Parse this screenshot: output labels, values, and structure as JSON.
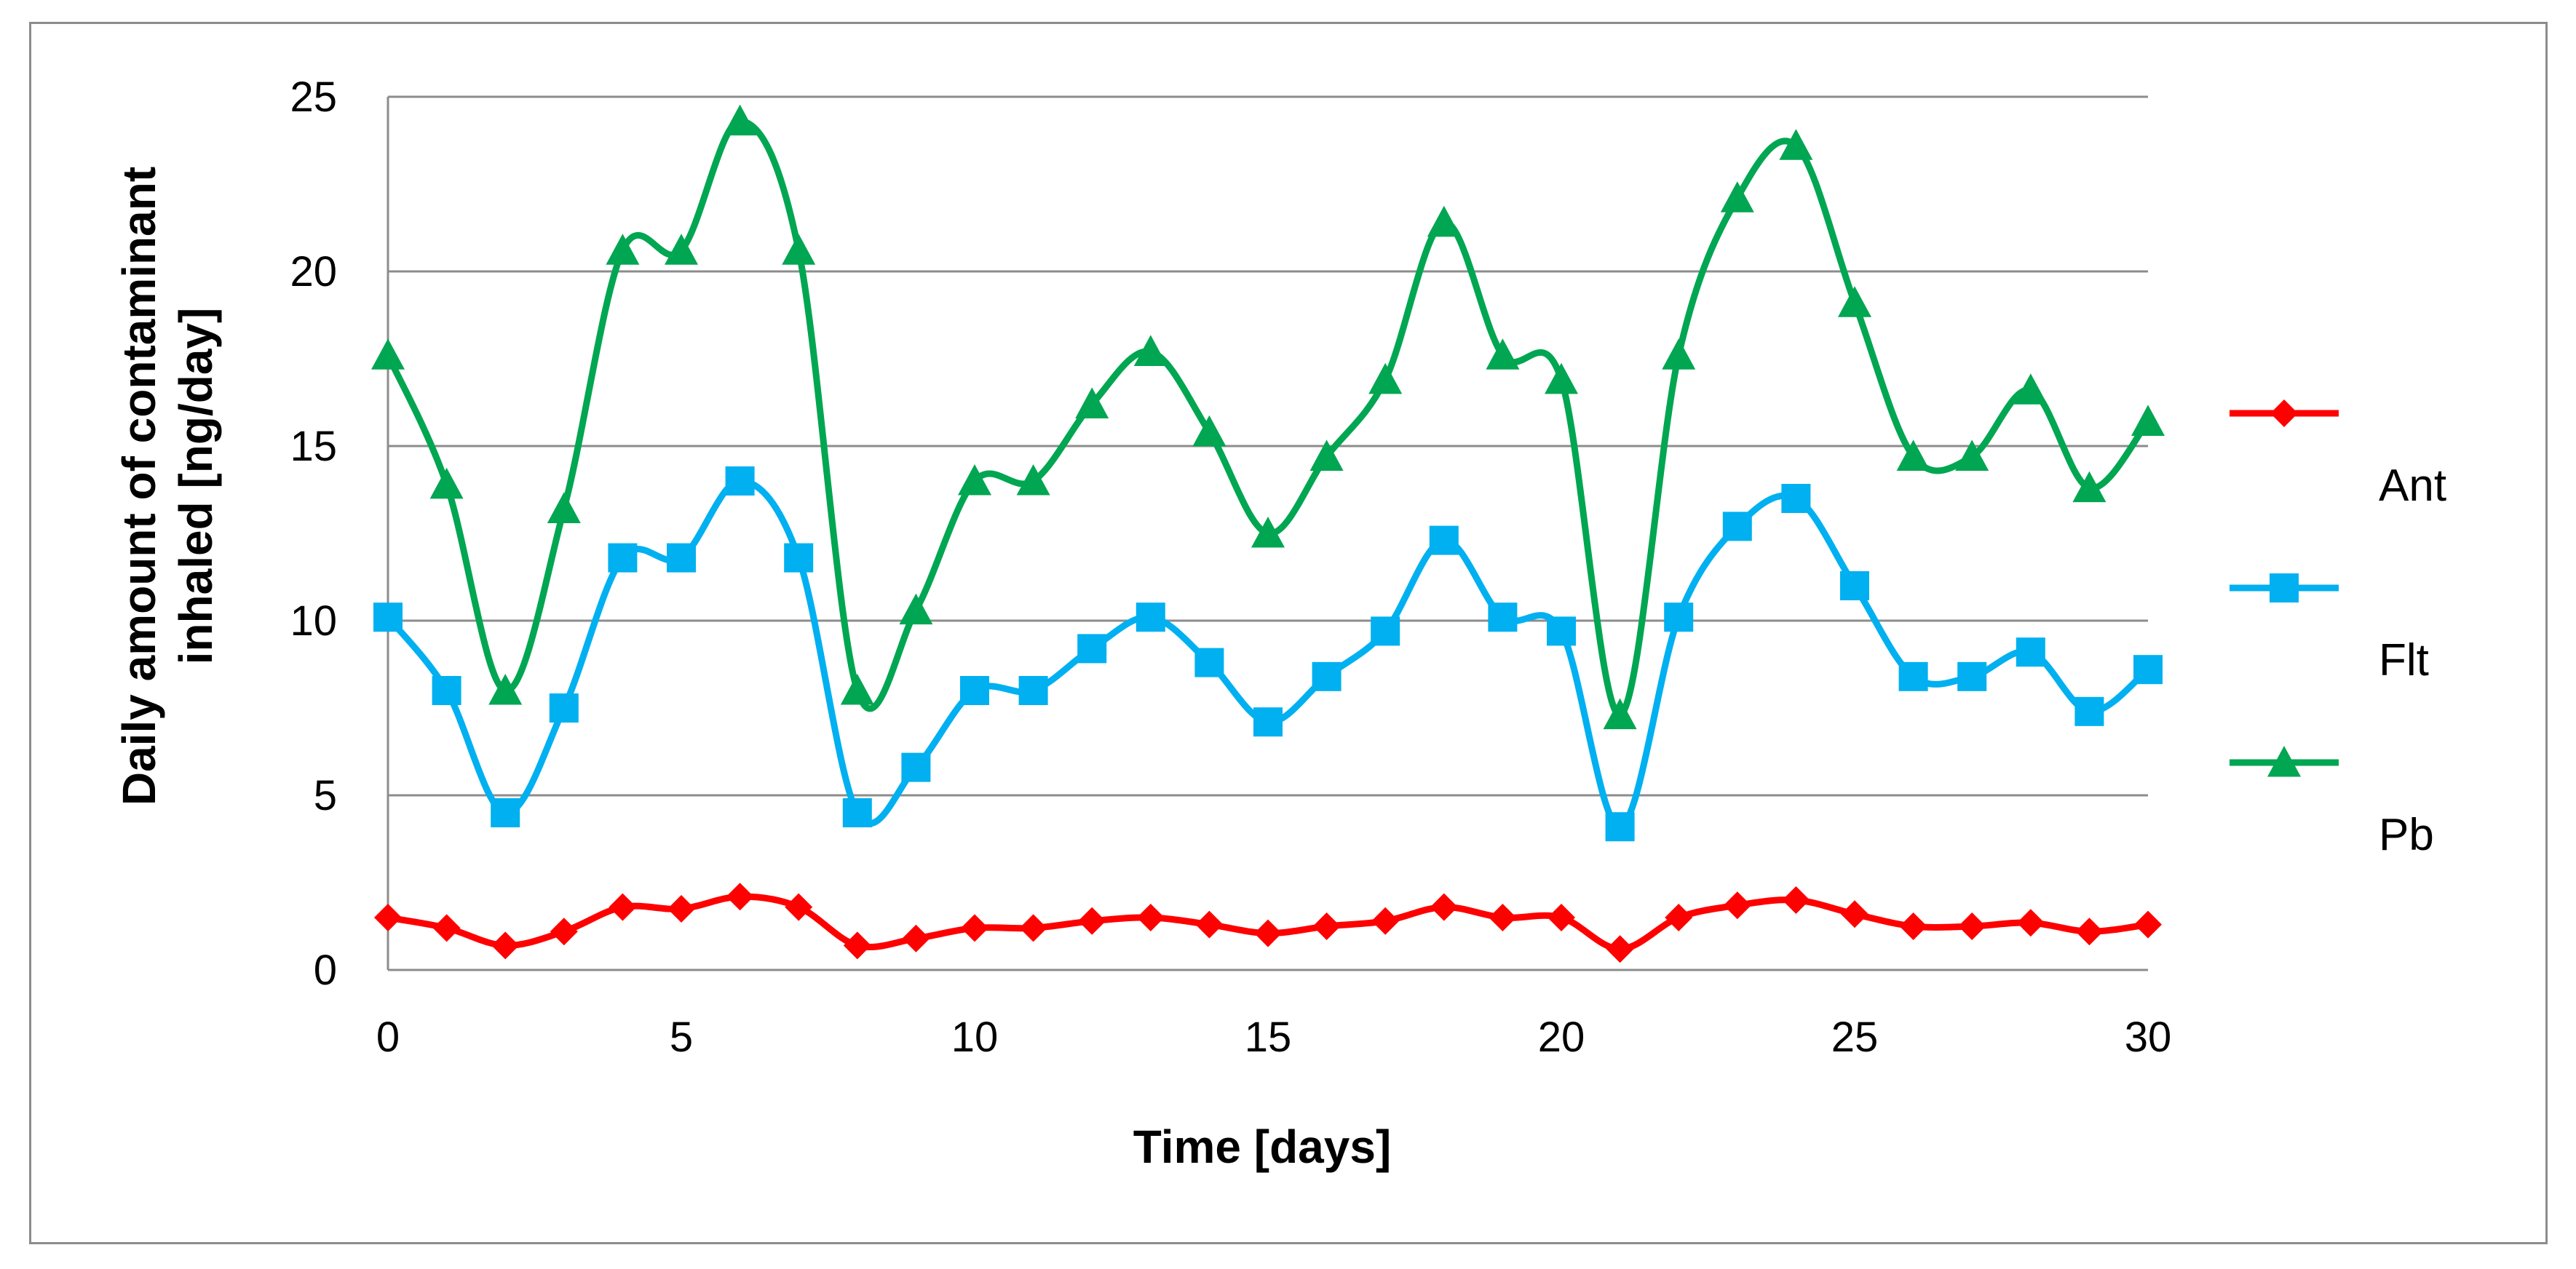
{
  "chart_data": {
    "type": "line",
    "xlabel": "Time [days]",
    "ylabel_line1": "Daily amount of contaminant",
    "ylabel_line2": "inhaled [ng/day]",
    "xlim": [
      0,
      30
    ],
    "ylim": [
      0,
      25
    ],
    "x_ticks": [
      0,
      5,
      10,
      15,
      20,
      25,
      30
    ],
    "y_ticks": [
      0,
      5,
      10,
      15,
      20,
      25
    ],
    "grid": "horizontal",
    "legend_position": "right",
    "smooth": true,
    "x": [
      0,
      1,
      2,
      3,
      4,
      5,
      6,
      7,
      8,
      9,
      10,
      11,
      12,
      13,
      14,
      15,
      16,
      17,
      18,
      19,
      20,
      21,
      22,
      23,
      24,
      25,
      26,
      27,
      28,
      29,
      30
    ],
    "series": [
      {
        "name": "Ant",
        "color": "#ff0000",
        "marker": "diamond",
        "values": [
          1.5,
          1.2,
          0.7,
          1.1,
          1.8,
          1.75,
          2.1,
          1.8,
          0.7,
          0.9,
          1.2,
          1.2,
          1.4,
          1.5,
          1.3,
          1.05,
          1.25,
          1.4,
          1.8,
          1.5,
          1.5,
          0.6,
          1.5,
          1.85,
          2.0,
          1.6,
          1.25,
          1.25,
          1.35,
          1.1,
          1.3
        ]
      },
      {
        "name": "Flt",
        "color": "#00b0f0",
        "marker": "square",
        "values": [
          10.1,
          8.0,
          4.5,
          7.5,
          11.8,
          11.8,
          14.0,
          11.8,
          4.5,
          5.8,
          8.0,
          8.0,
          9.2,
          10.1,
          8.8,
          7.1,
          8.4,
          9.7,
          12.3,
          10.1,
          9.7,
          4.1,
          10.1,
          12.7,
          13.5,
          11.0,
          8.4,
          8.4,
          9.1,
          7.4,
          8.6
        ]
      },
      {
        "name": "Pb",
        "color": "#00a651",
        "marker": "triangle",
        "values": [
          17.6,
          13.9,
          8.0,
          13.2,
          20.6,
          20.6,
          24.3,
          20.6,
          8.0,
          10.3,
          14.0,
          14.0,
          16.2,
          17.7,
          15.4,
          12.5,
          14.7,
          16.9,
          21.4,
          17.6,
          16.9,
          7.3,
          17.6,
          22.1,
          23.6,
          19.1,
          14.7,
          14.7,
          16.6,
          13.8,
          15.7
        ]
      }
    ]
  }
}
